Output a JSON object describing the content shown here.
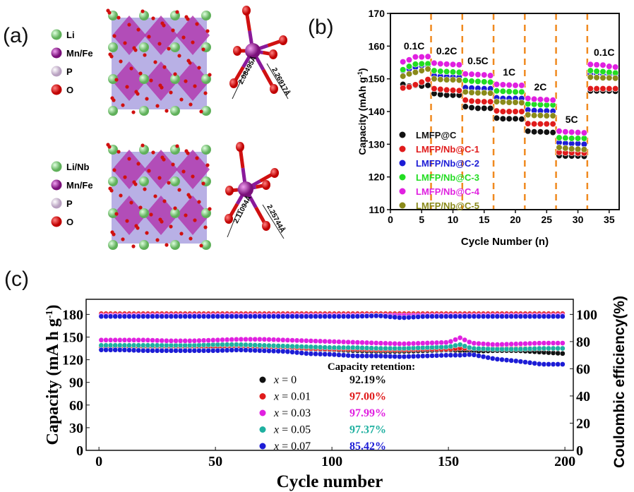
{
  "panel_labels": {
    "a": "(a)",
    "b": "(b)",
    "c": "(c)"
  },
  "panel_a": {
    "top_legend": [
      {
        "label": "Li",
        "color": "#8fd68a"
      },
      {
        "label": "Mn/Fe",
        "color": "#8a2a8a"
      },
      {
        "label": "P",
        "color": "#d9c8dc"
      },
      {
        "label": "O",
        "color": "#e01010"
      }
    ],
    "bottom_legend": [
      {
        "label": "Li/Nb",
        "color": "#8fd68a"
      },
      {
        "label": "Mn/Fe",
        "color": "#8a2a8a"
      },
      {
        "label": "P",
        "color": "#d9c8dc"
      },
      {
        "label": "O",
        "color": "#e01010"
      }
    ],
    "top_bonds": [
      "2.08495Å",
      "2.26917Å"
    ],
    "bottom_bonds": [
      "2.11094Å",
      "2.25744Å"
    ]
  },
  "chart_data": [
    {
      "type": "scatter",
      "title": "",
      "xlabel": "Cycle Number (n)",
      "ylabel": "Capacity (mAh g-1)",
      "xlim": [
        0,
        36.6
      ],
      "ylim": [
        110,
        170
      ],
      "xticks": [
        0,
        5,
        10,
        15,
        20,
        25,
        30,
        35
      ],
      "yticks": [
        110,
        120,
        130,
        140,
        150,
        160,
        170
      ],
      "legend_position": "bottom-left",
      "dividers": [
        6.5,
        11.5,
        16.5,
        21.5,
        26.5,
        31.5
      ],
      "rate_labels": [
        {
          "text": "0.1C",
          "x": 3.8,
          "y": 159
        },
        {
          "text": "0.2C",
          "x": 9,
          "y": 157.5
        },
        {
          "text": "0.5C",
          "x": 14,
          "y": 154.5
        },
        {
          "text": "1C",
          "x": 19,
          "y": 151
        },
        {
          "text": "2C",
          "x": 24,
          "y": 146.5
        },
        {
          "text": "5C",
          "x": 29,
          "y": 136.5
        },
        {
          "text": "0.1C",
          "x": 34.2,
          "y": 157
        }
      ],
      "x": [
        2,
        3,
        4,
        5,
        6,
        7,
        8,
        9,
        10,
        11,
        12,
        13,
        14,
        15,
        16,
        17,
        18,
        19,
        20,
        21,
        22,
        23,
        24,
        25,
        26,
        27,
        28,
        29,
        30,
        31,
        32,
        33,
        34,
        35,
        36
      ],
      "series": [
        {
          "name": "LMFP@C",
          "color": "#111111",
          "values": [
            148.3,
            147.8,
            148,
            147.8,
            148,
            145.5,
            145.2,
            145,
            145,
            145,
            141.5,
            141.2,
            141,
            141,
            141,
            138,
            137.8,
            137.8,
            137.8,
            137.7,
            134,
            133.8,
            133.8,
            133.7,
            133.6,
            126.5,
            126.4,
            126.4,
            126.4,
            126.3,
            146.3,
            146.3,
            146.3,
            146.3,
            146.2
          ]
        },
        {
          "name": "LMFP/Nb@C-1",
          "color": "#e01b1b",
          "values": [
            147.2,
            147.5,
            148.2,
            149,
            149.8,
            147,
            146.8,
            146.6,
            146.5,
            146.4,
            143.5,
            143.2,
            143.1,
            143,
            143,
            140.2,
            140,
            140,
            140,
            140,
            136.3,
            136.2,
            136.2,
            136.2,
            136.2,
            127.5,
            127.4,
            127.4,
            127.3,
            127.3,
            147,
            147,
            147,
            147,
            147
          ]
        },
        {
          "name": "LMFP/Nb@C-2",
          "color": "#1c1cd6",
          "values": [
            152.5,
            153,
            153.5,
            154,
            154,
            151,
            150.8,
            150.7,
            150.6,
            150.5,
            147.3,
            147.2,
            147.1,
            147,
            147,
            144.2,
            144,
            144,
            144,
            144,
            140.5,
            140.3,
            140.2,
            140.2,
            140.1,
            130.5,
            130.3,
            130.2,
            130.2,
            130,
            151.5,
            151.5,
            151.4,
            151.3,
            151.3
          ]
        },
        {
          "name": "LMFP/Nb@C-3",
          "color": "#22dd22",
          "values": [
            152.8,
            153.8,
            154.5,
            154.6,
            154.6,
            152.5,
            152.3,
            152.2,
            152.1,
            152,
            149.5,
            149.3,
            149.2,
            149.1,
            149,
            146.3,
            146.2,
            146.1,
            146,
            146,
            142.3,
            142.2,
            142.1,
            142,
            142,
            132,
            131.9,
            131.8,
            131.8,
            131.8,
            152.5,
            152.3,
            152.2,
            152,
            151.8
          ]
        },
        {
          "name": "LMFP/Nb@C-4",
          "color": "#e020e0",
          "values": [
            155.2,
            155.8,
            156.7,
            156.7,
            156.8,
            154.8,
            154.6,
            154.5,
            154.4,
            154.3,
            151.5,
            151.4,
            151.3,
            151.2,
            151,
            148.3,
            148.2,
            148.1,
            148,
            148,
            144,
            143.8,
            143.7,
            143.6,
            143.5,
            134,
            133.8,
            133.7,
            133.6,
            133.5,
            154.4,
            154.3,
            154.2,
            153.8,
            153.6
          ]
        },
        {
          "name": "LMFP/Nb@C-5",
          "color": "#8a8a1a",
          "values": [
            150.8,
            151.5,
            152,
            152.5,
            153,
            150,
            149.8,
            149.7,
            149.7,
            149.6,
            146,
            145.8,
            145.7,
            145.7,
            145.6,
            143,
            142.9,
            142.8,
            142.8,
            142.7,
            139,
            138.8,
            138.8,
            138.7,
            138.7,
            129,
            128.8,
            128.6,
            128.5,
            128.4,
            150.5,
            150.4,
            150.3,
            150.3,
            150.2
          ]
        }
      ]
    },
    {
      "type": "scatter",
      "title": "",
      "xlabel": "Cycle number",
      "ylabel": "Capacity (mA h g-1)",
      "y2label": "Coulombic efficiency(%)",
      "xlim": [
        -5.5,
        203.6
      ],
      "ylim": [
        0,
        200
      ],
      "y2lim": [
        0,
        111.1
      ],
      "xticks": [
        0,
        50,
        100,
        150,
        200
      ],
      "yticks": [
        0,
        30,
        60,
        90,
        120,
        150,
        180
      ],
      "y2ticks": [
        0,
        20,
        40,
        60,
        80,
        100
      ],
      "legend_title": "Capacity retention:",
      "legend_position": "center",
      "x": [
        0,
        10,
        20,
        30,
        40,
        50,
        60,
        70,
        80,
        90,
        100,
        110,
        120,
        130,
        140,
        150,
        155,
        160,
        170,
        180,
        190,
        200
      ],
      "series": [
        {
          "name": "x = 0",
          "var": "x",
          "eq": " = 0",
          "retention": "92.19%",
          "color": "#111111",
          "capacity": [
            137,
            137,
            137,
            137,
            137,
            136,
            136,
            136,
            136,
            134,
            133,
            132,
            131,
            131,
            132,
            133,
            132,
            131,
            132,
            132,
            130,
            128
          ],
          "ce": [
            99,
            99,
            99,
            99,
            99,
            99,
            99,
            99,
            99,
            99,
            99,
            99,
            99,
            99,
            99,
            99,
            99,
            99,
            99,
            99,
            99,
            99
          ]
        },
        {
          "name": "x = 0.01",
          "var": "x",
          "eq": " = 0.01",
          "retention": "97.00%",
          "color": "#e01b1b",
          "capacity": [
            137,
            137,
            137,
            137,
            137,
            137,
            137,
            136,
            136,
            135,
            134,
            134,
            133,
            133,
            134,
            134,
            135,
            135,
            135,
            135,
            135,
            135
          ],
          "ce": [
            100.5,
            100.5,
            100.5,
            100.5,
            100.5,
            100.5,
            100.5,
            100.5,
            100.5,
            100.5,
            100.5,
            100.5,
            100.5,
            100.5,
            100.5,
            100.5,
            100.5,
            100.5,
            100.5,
            100.5,
            100.5,
            100.5
          ]
        },
        {
          "name": "x = 0.03",
          "var": "x",
          "eq": " = 0.03",
          "retention": "97.99%",
          "color": "#e020e0",
          "capacity": [
            146,
            146,
            146,
            145,
            145,
            146,
            147,
            147,
            146,
            145,
            144,
            143,
            142,
            141,
            142,
            143,
            149,
            142,
            140,
            141,
            142,
            142
          ],
          "ce": [
            99.3,
            99.3,
            99.3,
            99.3,
            99.3,
            99.3,
            99.3,
            99.3,
            99.3,
            99.3,
            99.3,
            99.3,
            99.3,
            99.3,
            99.3,
            99.3,
            99.3,
            99.3,
            99.3,
            99.3,
            99.3,
            99.3
          ]
        },
        {
          "name": "x = 0.05",
          "var": "x",
          "eq": " = 0.05",
          "retention": "97.37%",
          "color": "#1fb0a0",
          "capacity": [
            139,
            139,
            139,
            139,
            139,
            140,
            140,
            139,
            138,
            137,
            136,
            136,
            135,
            135,
            136,
            137,
            140,
            135,
            134,
            134,
            135,
            135
          ],
          "ce": [
            99,
            99,
            99,
            99,
            99,
            99,
            99,
            99,
            99,
            99,
            99,
            99,
            99,
            99,
            99,
            99,
            99,
            99,
            99,
            99,
            99,
            99
          ]
        },
        {
          "name": "x = 0.07",
          "var": "x",
          "eq": " = 0.07",
          "retention": "85.42%",
          "color": "#1c1cd6",
          "capacity": [
            133,
            133,
            132,
            132,
            132,
            132,
            133,
            132,
            131,
            128,
            127,
            125,
            125,
            124,
            125,
            126,
            126,
            127,
            121,
            118,
            114,
            114
          ],
          "ce": [
            98.5,
            98.5,
            98.5,
            98.5,
            98.5,
            98.5,
            98.5,
            98.5,
            98.5,
            98.5,
            98.5,
            98.5,
            99,
            97.5,
            98.5,
            98.5,
            98.5,
            98.5,
            98.5,
            98.5,
            98.5,
            98.5
          ]
        }
      ]
    }
  ]
}
